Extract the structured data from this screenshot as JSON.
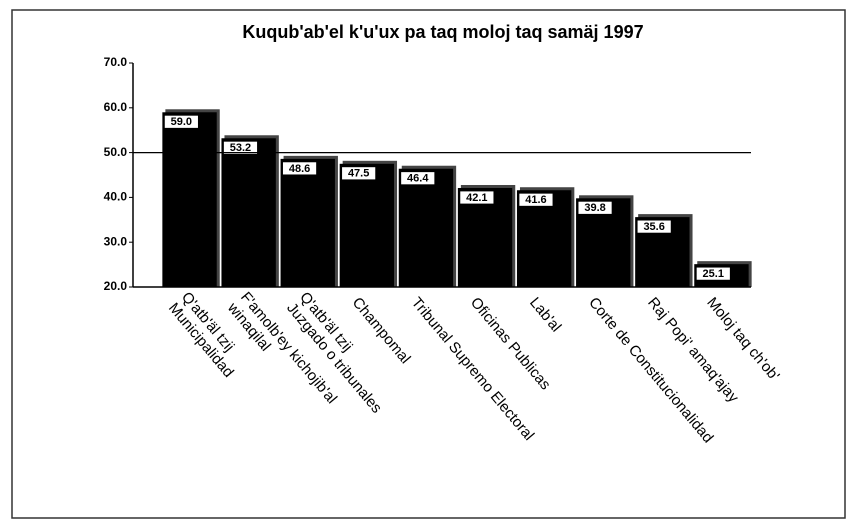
{
  "chart_data": {
    "type": "bar",
    "title": "Kuqub'ab'el k'u'ux pa taq moloj taq samäj 1997",
    "categories": [
      [
        "Q'atb'äl tzij",
        "Municipalidad"
      ],
      [
        "F'amolb'ey kichojib'al",
        "winaqilal"
      ],
      [
        "Q'atb'äl tzij",
        "Juzgado o tribunales"
      ],
      [
        "Champomal"
      ],
      [
        "Tribunal Supremo Electoral"
      ],
      [
        "Oficinas Publicas"
      ],
      [
        "Lab'al"
      ],
      [
        "Corte de Constitucionalidad"
      ],
      [
        "Raj Popi' amaq'ajay"
      ],
      [
        "Moloj taq ch'ob'"
      ]
    ],
    "values": [
      59.0,
      53.2,
      48.6,
      47.5,
      46.4,
      42.1,
      41.6,
      39.8,
      35.6,
      25.1
    ],
    "value_labels": [
      "59.0",
      "53.2",
      "48.6",
      "47.5",
      "46.4",
      "42.1",
      "41.6",
      "39.8",
      "35.6",
      "25.1"
    ],
    "color": "#000000",
    "ylim": [
      20,
      70
    ],
    "yticks": [
      {
        "value": 20,
        "label": "20.0"
      },
      {
        "value": 30,
        "label": "30.0"
      },
      {
        "value": 40,
        "label": "40.0"
      },
      {
        "value": 50,
        "label": "50.0"
      },
      {
        "value": 60,
        "label": "60.0"
      },
      {
        "value": 70,
        "label": "70.0"
      }
    ],
    "reference_line": 50,
    "grid": false
  }
}
